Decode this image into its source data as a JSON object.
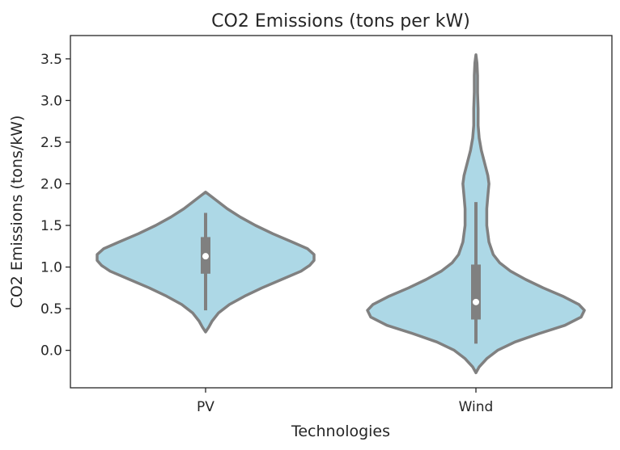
{
  "chart_data": {
    "type": "violin",
    "title": "CO2 Emissions (tons per kW)",
    "xlabel": "Technologies",
    "ylabel": "CO2 Emissions (tons/kW)",
    "categories": [
      "PV",
      "Wind"
    ],
    "ylim": [
      -0.45,
      3.78
    ],
    "yticks": [
      "0.0",
      "0.5",
      "1.0",
      "1.5",
      "2.0",
      "2.5",
      "3.0",
      "3.5"
    ],
    "grid": false,
    "colors": {
      "fill": "#add8e6",
      "stroke": "#808080",
      "median": "#ffffff"
    },
    "violins": [
      {
        "category": "PV",
        "range": [
          0.22,
          1.9
        ],
        "quartiles": [
          0.92,
          1.13,
          1.36
        ],
        "whiskers": [
          0.48,
          1.65
        ],
        "median": 1.13,
        "density": [
          [
            0.22,
            0.0
          ],
          [
            0.28,
            0.03
          ],
          [
            0.35,
            0.06
          ],
          [
            0.45,
            0.12
          ],
          [
            0.55,
            0.22
          ],
          [
            0.65,
            0.36
          ],
          [
            0.75,
            0.52
          ],
          [
            0.85,
            0.7
          ],
          [
            0.95,
            0.88
          ],
          [
            1.02,
            0.96
          ],
          [
            1.08,
            1.0
          ],
          [
            1.15,
            1.0
          ],
          [
            1.22,
            0.94
          ],
          [
            1.3,
            0.8
          ],
          [
            1.4,
            0.62
          ],
          [
            1.5,
            0.46
          ],
          [
            1.6,
            0.32
          ],
          [
            1.7,
            0.2
          ],
          [
            1.78,
            0.12
          ],
          [
            1.85,
            0.05
          ],
          [
            1.9,
            0.0
          ]
        ]
      },
      {
        "category": "Wind",
        "range": [
          -0.27,
          3.55
        ],
        "quartiles": [
          0.37,
          0.58,
          1.03
        ],
        "whiskers": [
          0.08,
          1.78
        ],
        "median": 0.58,
        "density": [
          [
            -0.27,
            0.0
          ],
          [
            -0.2,
            0.03
          ],
          [
            -0.1,
            0.1
          ],
          [
            0.0,
            0.2
          ],
          [
            0.1,
            0.36
          ],
          [
            0.2,
            0.58
          ],
          [
            0.3,
            0.82
          ],
          [
            0.4,
            0.97
          ],
          [
            0.48,
            1.0
          ],
          [
            0.55,
            0.95
          ],
          [
            0.65,
            0.8
          ],
          [
            0.75,
            0.62
          ],
          [
            0.85,
            0.46
          ],
          [
            0.95,
            0.32
          ],
          [
            1.05,
            0.22
          ],
          [
            1.15,
            0.16
          ],
          [
            1.3,
            0.12
          ],
          [
            1.5,
            0.1
          ],
          [
            1.7,
            0.1
          ],
          [
            1.85,
            0.11
          ],
          [
            2.0,
            0.12
          ],
          [
            2.1,
            0.11
          ],
          [
            2.25,
            0.08
          ],
          [
            2.4,
            0.05
          ],
          [
            2.55,
            0.03
          ],
          [
            2.7,
            0.02
          ],
          [
            2.9,
            0.02
          ],
          [
            3.1,
            0.015
          ],
          [
            3.3,
            0.015
          ],
          [
            3.45,
            0.01
          ],
          [
            3.55,
            0.0
          ]
        ]
      }
    ]
  }
}
